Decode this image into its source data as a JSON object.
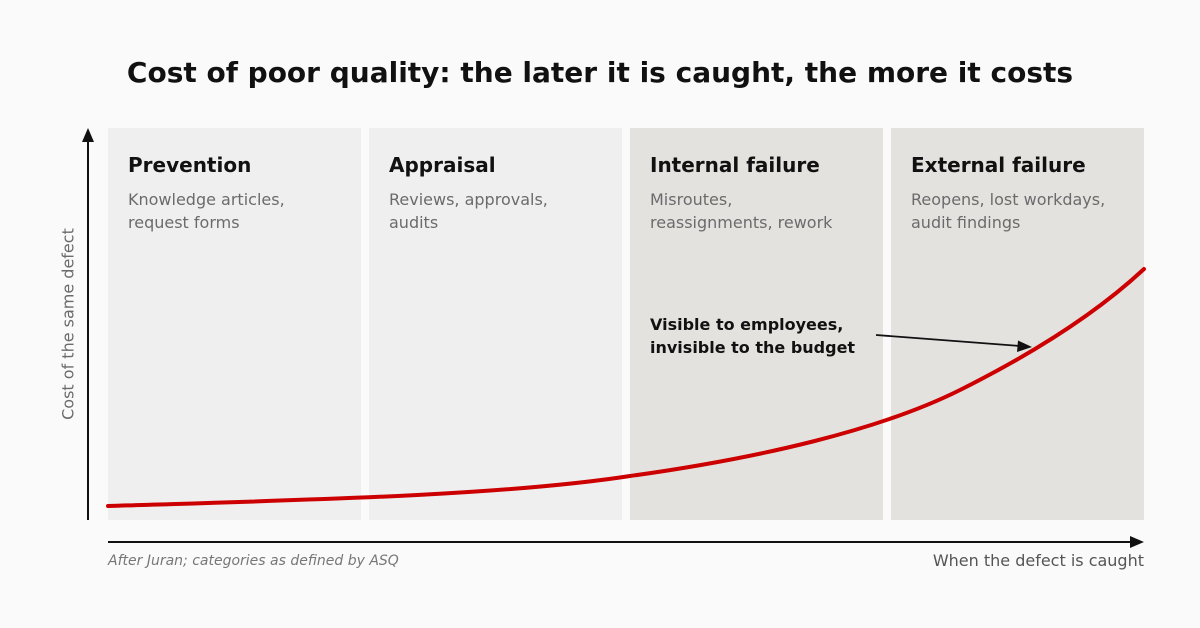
{
  "title": "Cost of poor quality: the later it is caught, the more it costs",
  "stages": [
    {
      "heading": "Prevention",
      "description": "Knowledge articles,\nrequest forms"
    },
    {
      "heading": "Appraisal",
      "description": "Reviews, approvals,\naudits"
    },
    {
      "heading": "Internal failure",
      "description": "Misroutes,\nreassignments, rework"
    },
    {
      "heading": "External failure",
      "description": "Reopens, lost workdays,\naudit findings"
    }
  ],
  "annotation": "Visible to employees,\ninvisible to the budget",
  "axes": {
    "y_label": "Cost of the same defect",
    "x_label": "When the defect is caught"
  },
  "source_note": "After Juran; categories as defined by ASQ",
  "colors": {
    "curve": "#cc0000",
    "prevention_appraisal_panel": "#efefef",
    "failure_panel": "#e3e2df",
    "axis": "#111111"
  }
}
